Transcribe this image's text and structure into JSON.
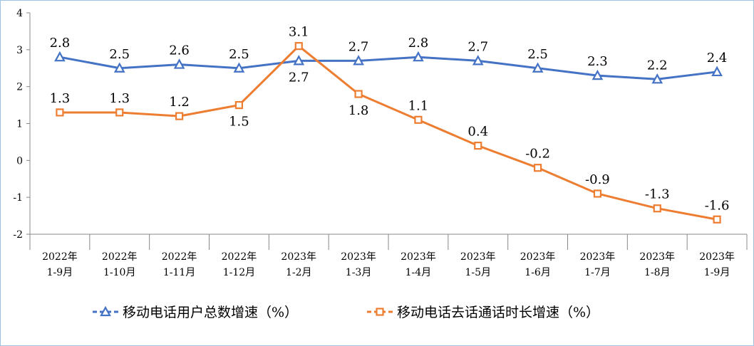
{
  "chart_data": {
    "type": "line",
    "title": "",
    "xlabel": "",
    "ylabel": "",
    "ylim": [
      -2,
      4
    ],
    "yticks": [
      -2,
      -1,
      0,
      1,
      2,
      3,
      4
    ],
    "grid": false,
    "legend_position": "bottom",
    "categories": [
      [
        "2022年",
        "1-9月"
      ],
      [
        "2022年",
        "1-10月"
      ],
      [
        "2022年",
        "1-11月"
      ],
      [
        "2022年",
        "1-12月"
      ],
      [
        "2023年",
        "1-2月"
      ],
      [
        "2023年",
        "1-3月"
      ],
      [
        "2023年",
        "1-4月"
      ],
      [
        "2023年",
        "1-5月"
      ],
      [
        "2023年",
        "1-6月"
      ],
      [
        "2023年",
        "1-7月"
      ],
      [
        "2023年",
        "1-8月"
      ],
      [
        "2023年",
        "1-9月"
      ]
    ],
    "series": [
      {
        "name": "移动电话用户总数增速（%）",
        "color": "#4472c4",
        "marker": "triangle",
        "values": [
          2.8,
          2.5,
          2.6,
          2.5,
          2.7,
          2.7,
          2.8,
          2.7,
          2.5,
          2.3,
          2.2,
          2.4
        ]
      },
      {
        "name": "移动电话去话通话时长增速（%）",
        "color": "#ed7d31",
        "marker": "square",
        "values": [
          1.3,
          1.3,
          1.2,
          1.5,
          3.1,
          1.8,
          1.1,
          0.4,
          -0.2,
          -0.9,
          -1.3,
          -1.6
        ]
      }
    ]
  }
}
